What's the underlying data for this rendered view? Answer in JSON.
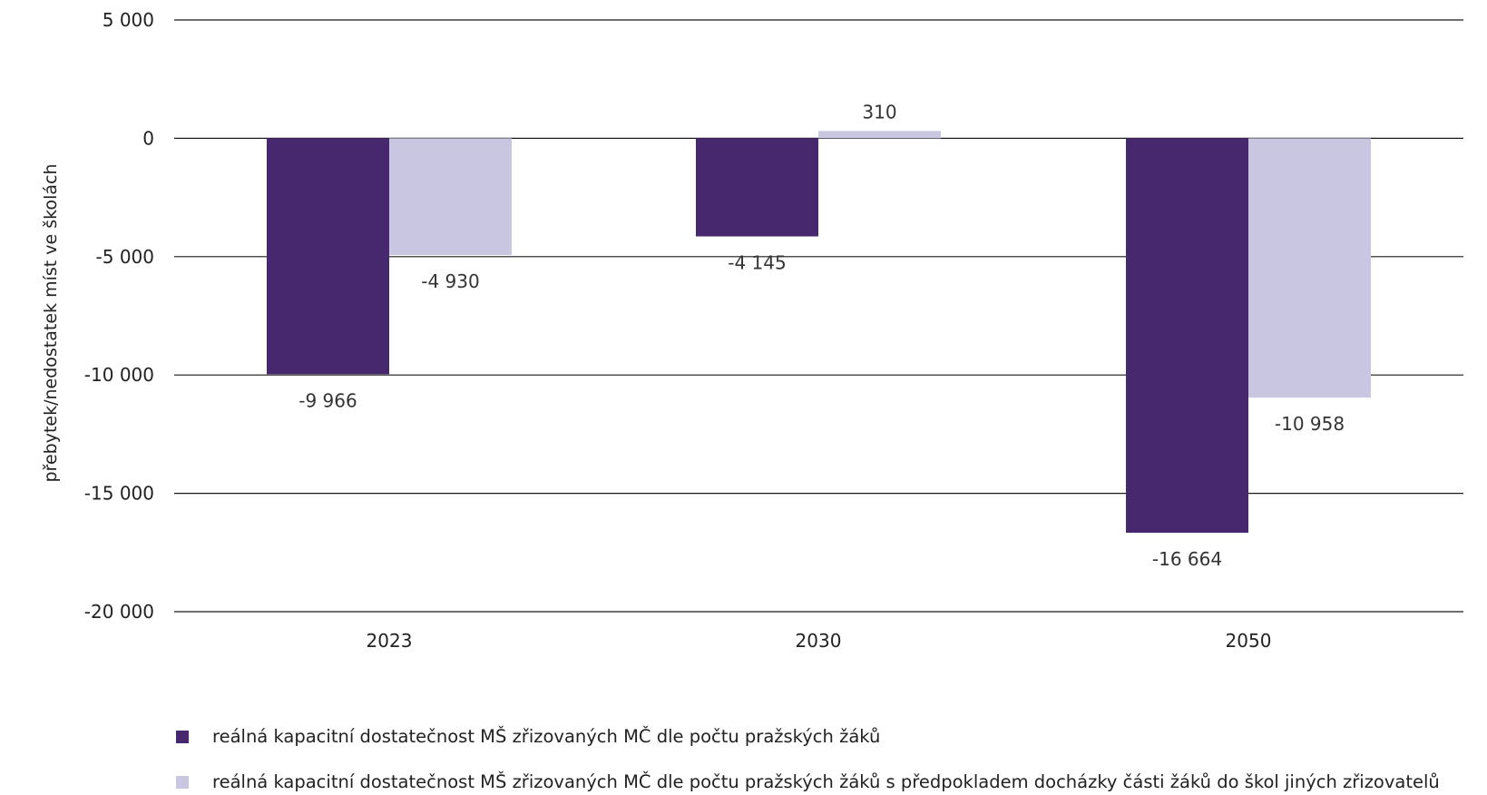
{
  "chart_data": {
    "type": "bar",
    "categories": [
      "2023",
      "2030",
      "2050"
    ],
    "series": [
      {
        "name": "reálná kapacitní dostatečnost MŠ zřizovaných MČ dle počtu pražských žáků",
        "values": [
          -9966,
          -4145,
          -16664
        ],
        "labels": [
          "-9 966",
          "-4 145",
          "-16 664"
        ],
        "color": "#47286e"
      },
      {
        "name": "reálná kapacitní dostatečnost MŠ zřizovaných MČ dle počtu pražských žáků s předpokladem docházky části žáků do škol jiných zřizovatelů",
        "values": [
          -4930,
          310,
          -10958
        ],
        "labels": [
          "-4 930",
          "310",
          "-10 958"
        ],
        "color": "#c9c6e2"
      }
    ],
    "xlabel": "",
    "ylabel": "přebytek/nedostatek míst ve školách",
    "ylim": [
      -20000,
      5000
    ],
    "yticks": [
      5000,
      0,
      -5000,
      -10000,
      -15000,
      -20000
    ],
    "ytick_labels": [
      "5 000",
      "0",
      "-5 000",
      "-10 000",
      "-15 000",
      "-20 000"
    ],
    "grid": true,
    "legend_position": "bottom-left"
  },
  "colors": {
    "gridline": "#1a1a1a",
    "text": "#222222"
  }
}
